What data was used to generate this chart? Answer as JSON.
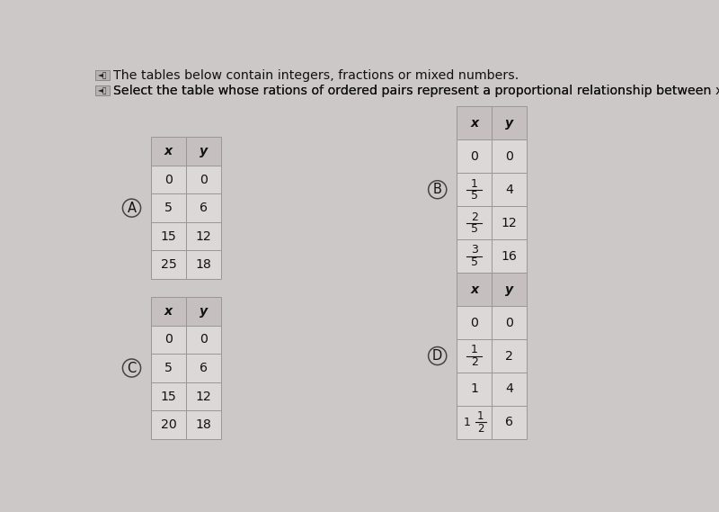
{
  "background_color": "#cdc8c8",
  "title_line1": "The tables below contain integers, fractions or mixed numbers.",
  "title_line2": "Select the table whose rations of ordered pairs represent a proportional relationship between x and y.",
  "table_A": {
    "label": "A",
    "x_vals": [
      "x",
      "0",
      "5",
      "15",
      "25"
    ],
    "y_vals": [
      "y",
      "0",
      "6",
      "12",
      "18"
    ]
  },
  "table_B": {
    "label": "B",
    "x_vals": [
      "x",
      "0",
      "1/5",
      "2/5",
      "3/5"
    ],
    "y_vals": [
      "y",
      "0",
      "4",
      "12",
      "16"
    ]
  },
  "table_C": {
    "label": "C",
    "x_vals": [
      "x",
      "0",
      "5",
      "15",
      "20"
    ],
    "y_vals": [
      "y",
      "0",
      "6",
      "12",
      "18"
    ]
  },
  "table_D": {
    "label": "D",
    "x_vals": [
      "x",
      "0",
      "1/2",
      "1",
      "1 1/2"
    ],
    "y_vals": [
      "y",
      "0",
      "2",
      "4",
      "6"
    ]
  },
  "header_bg": "#c5bfbf",
  "cell_bg": "#ddd8d8",
  "border_color": "#9a9696",
  "text_color": "#111111",
  "speaker_icon": "◄⧖"
}
